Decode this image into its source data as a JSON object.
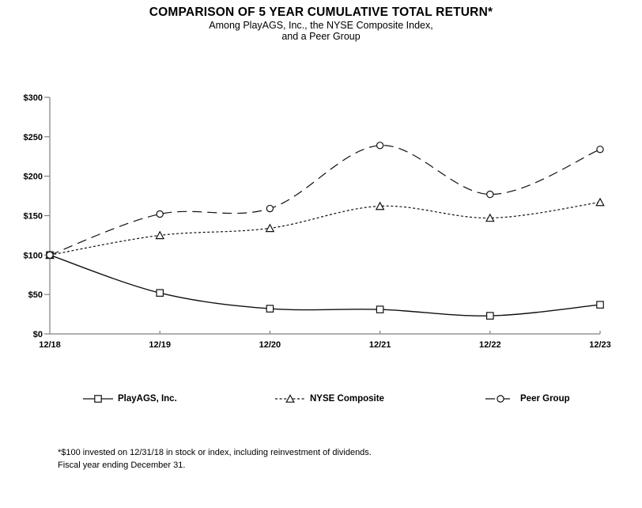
{
  "header": {
    "title": "COMPARISON OF 5 YEAR CUMULATIVE TOTAL RETURN*",
    "subtitle_line1": "Among PlayAGS, Inc., the NYSE Composite Index,",
    "subtitle_line2": "and a Peer Group"
  },
  "chart_data": {
    "type": "line",
    "title": "COMPARISON OF 5 YEAR CUMULATIVE TOTAL RETURN*",
    "categories": [
      "12/18",
      "12/19",
      "12/20",
      "12/21",
      "12/22",
      "12/23"
    ],
    "y_tick_labels": [
      "$0",
      "$50",
      "$100",
      "$150",
      "$200",
      "$250",
      "$300"
    ],
    "ylim": [
      0,
      300
    ],
    "y_tick_step": 50,
    "grid": false,
    "legend_position": "bottom",
    "series": [
      {
        "name": "PlayAGS, Inc.",
        "values": [
          100,
          52,
          32,
          31,
          23,
          37
        ],
        "marker": "square",
        "line_style": "solid"
      },
      {
        "name": "NYSE Composite",
        "values": [
          100,
          125,
          134,
          162,
          147,
          167
        ],
        "marker": "triangle",
        "line_style": "dotted"
      },
      {
        "name": "Peer Group",
        "values": [
          100,
          152,
          159,
          239,
          177,
          234
        ],
        "marker": "circle",
        "line_style": "dashed"
      }
    ],
    "line_color": "#111111",
    "axis_color": "#808080"
  },
  "footnote": {
    "line1": "*$100 invested on 12/31/18 in stock or index, including reinvestment of dividends.",
    "line2": "Fiscal year ending December 31."
  }
}
